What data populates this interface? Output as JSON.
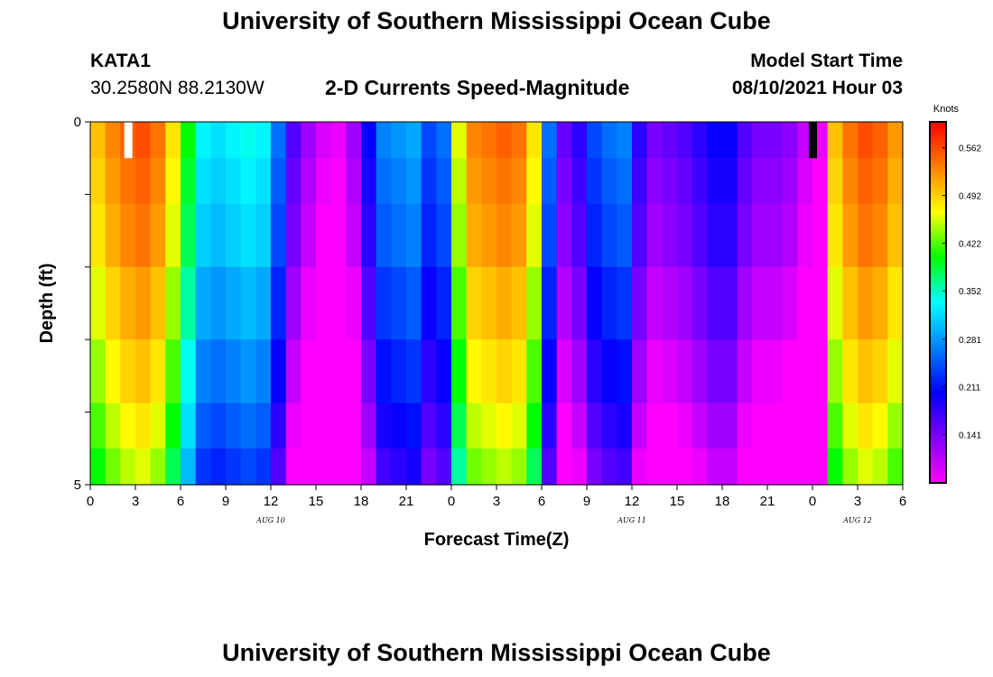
{
  "header": {
    "title_top": "University of Southern Mississippi Ocean Cube",
    "title_bottom": "University of Southern Mississippi Ocean Cube",
    "station_id": "KATA1",
    "station_coords": "30.2580N  88.2130W",
    "plot_title": "2-D Currents Speed-Magnitude",
    "model_start_label": "Model Start Time",
    "model_start_value": "08/10/2021 Hour 03"
  },
  "chart_data": {
    "type": "heatmap",
    "title": "2-D Currents Speed-Magnitude",
    "xlabel": "Forecast Time(Z)",
    "ylabel": "Depth (ft)",
    "x_start_hour": 0,
    "x_end_hour": 54,
    "x_tick_labels": [
      "0",
      "3",
      "6",
      "9",
      "12",
      "15",
      "18",
      "21",
      "0",
      "3",
      "6",
      "9",
      "12",
      "15",
      "18",
      "21",
      "0",
      "3",
      "6"
    ],
    "date_labels": [
      {
        "label": "AUG  10",
        "hour": 12
      },
      {
        "label": "AUG  11",
        "hour": 36
      },
      {
        "label": "AUG  12",
        "hour": 51
      }
    ],
    "y_tick_labels": [
      "0",
      "5"
    ],
    "depth_range_ft": [
      0,
      5
    ],
    "depth_rows_ft": [
      0.25,
      0.75,
      1.5,
      2.5,
      3.5,
      4.25,
      4.75
    ],
    "colorbar": {
      "unit": "Knots",
      "ticks": [
        0.141,
        0.211,
        0.281,
        0.352,
        0.422,
        0.492,
        0.562
      ],
      "range": [
        0.07,
        0.6
      ],
      "colors": [
        "#ff00ff",
        "#8000ff",
        "#0000ff",
        "#0080ff",
        "#00ffff",
        "#00ff00",
        "#ffff00",
        "#ff8000",
        "#ff0000"
      ]
    },
    "profile": [
      0.5,
      0.53,
      0.55,
      0.56,
      0.54,
      0.48,
      0.4,
      0.33,
      0.32,
      0.33,
      0.34,
      0.33,
      0.26,
      0.16,
      0.12,
      0.09,
      0.08,
      0.12,
      0.2,
      0.27,
      0.28,
      0.29,
      0.24,
      0.26,
      0.46,
      0.53,
      0.54,
      0.55,
      0.54,
      0.48,
      0.26,
      0.15,
      0.18,
      0.24,
      0.26,
      0.27,
      0.18,
      0.14,
      0.15,
      0.16,
      0.18,
      0.2,
      0.2,
      0.16,
      0.14,
      0.14,
      0.13,
      0.1,
      0.08,
      0.5,
      0.54,
      0.56,
      0.55,
      0.52
    ],
    "row_offsets": [
      0.0,
      -0.01,
      -0.02,
      -0.04,
      -0.06,
      -0.08,
      -0.1
    ],
    "surface_markers": [
      {
        "hour": 2.5,
        "color": "#ffffff"
      },
      {
        "hour": 48.0,
        "color": "#000000"
      }
    ]
  }
}
